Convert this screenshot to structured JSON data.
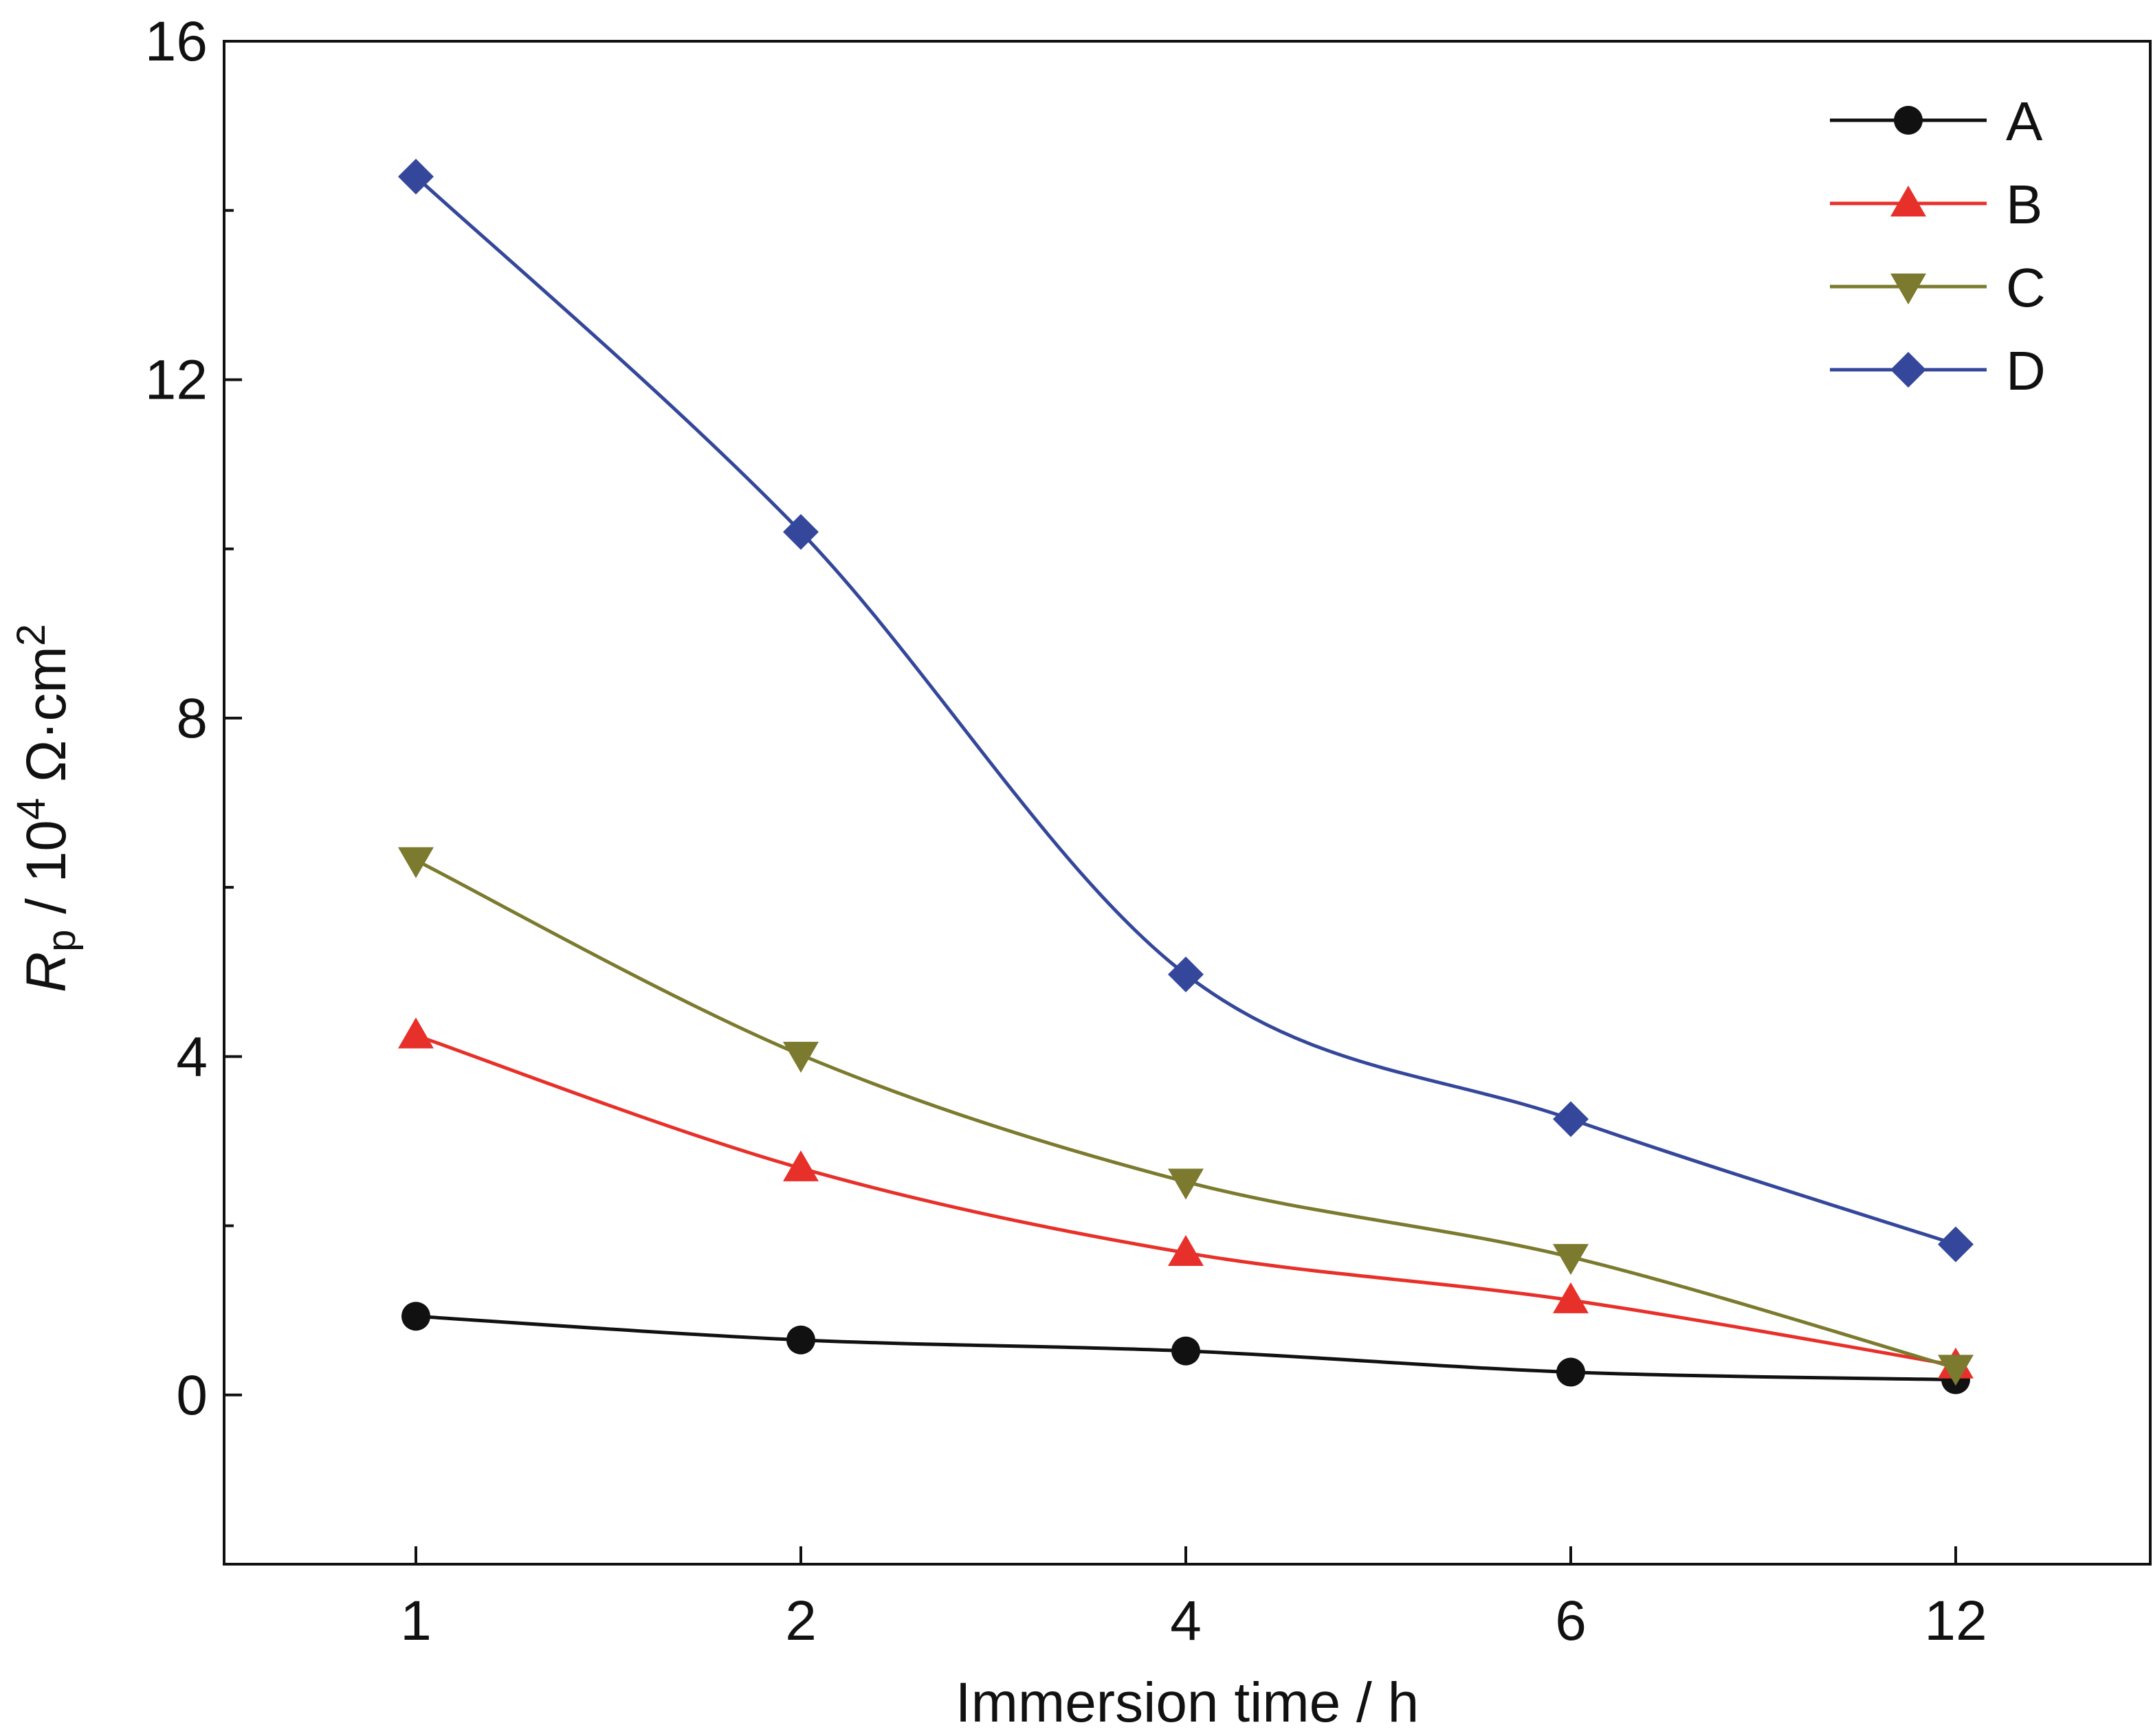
{
  "chart_data": {
    "type": "line",
    "title": "",
    "xlabel": "Immersion time / h",
    "ylabel": {
      "symbol": "R",
      "subscript": "p",
      "unit_prefix": " / 10",
      "unit_exponent": "4",
      "unit_suffix": " Ω·cm",
      "unit_suffix_exponent": "2"
    },
    "categories": [
      "1",
      "2",
      "4",
      "6",
      "12"
    ],
    "ylim": [
      -2,
      16
    ],
    "yticks": [
      "0",
      "4",
      "8",
      "12",
      "16"
    ],
    "legend_position": "top-right",
    "series": [
      {
        "name": "A",
        "marker": "circle",
        "color": "#111111",
        "values": [
          0.93,
          0.65,
          0.52,
          0.27,
          0.18
        ]
      },
      {
        "name": "B",
        "marker": "triangle-up",
        "color": "#e8302a",
        "values": [
          4.25,
          2.68,
          1.68,
          1.12,
          0.35
        ]
      },
      {
        "name": "C",
        "marker": "triangle-down",
        "color": "#7b7a2e",
        "values": [
          6.32,
          4.02,
          2.52,
          1.63,
          0.32
        ]
      },
      {
        "name": "D",
        "marker": "diamond",
        "color": "#34479a",
        "values": [
          14.4,
          10.2,
          4.97,
          3.26,
          1.78
        ]
      }
    ]
  }
}
